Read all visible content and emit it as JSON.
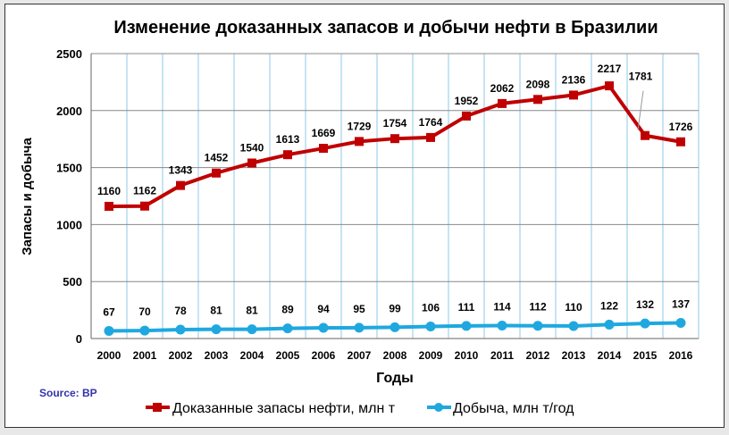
{
  "chart_data": {
    "type": "line",
    "title": "Изменение доказанных запасов и добычи нефти в Бразилии",
    "xlabel": "Годы",
    "ylabel": "Запасы и добыча",
    "ylim": [
      0,
      2500
    ],
    "yticks": [
      0,
      500,
      1000,
      1500,
      2000,
      2500
    ],
    "categories": [
      "2000",
      "2001",
      "2002",
      "2003",
      "2004",
      "2005",
      "2006",
      "2007",
      "2008",
      "2009",
      "2010",
      "2011",
      "2012",
      "2013",
      "2014",
      "2015",
      "2016"
    ],
    "series": [
      {
        "name": "Доказанные запасы нефти, млн т",
        "color": "#c00000",
        "marker": "square",
        "values": [
          1160,
          1162,
          1343,
          1452,
          1540,
          1613,
          1669,
          1729,
          1754,
          1764,
          1952,
          2062,
          2098,
          2136,
          2217,
          1781,
          1726
        ]
      },
      {
        "name": "Добыча, млн т/год",
        "color": "#1fa8e0",
        "marker": "circle",
        "values": [
          67,
          70,
          78,
          81,
          81,
          89,
          94,
          95,
          99,
          106,
          111,
          114,
          112,
          110,
          122,
          132,
          137
        ]
      }
    ],
    "grid": true,
    "legend": "bottom",
    "source": "Source: BP"
  }
}
